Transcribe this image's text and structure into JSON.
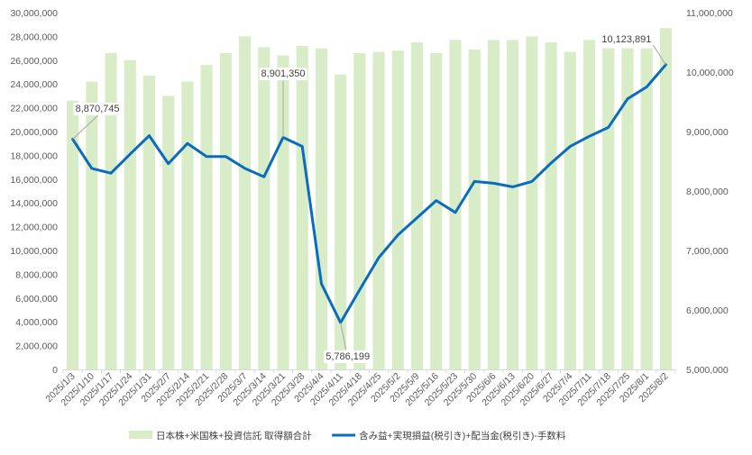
{
  "chart_data": {
    "type": "bar+line",
    "title": "",
    "categories": [
      "2025/1/3",
      "2025/1/10",
      "2025/1/17",
      "2025/1/24",
      "2025/1/31",
      "2025/2/7",
      "2025/2/14",
      "2025/2/21",
      "2025/2/28",
      "2025/3/7",
      "2025/3/14",
      "2025/3/21",
      "2025/3/28",
      "2025/4/4",
      "2025/4/11",
      "2025/4/18",
      "2025/4/25",
      "2025/5/2",
      "2025/5/9",
      "2025/5/16",
      "2025/5/23",
      "2025/5/30",
      "2025/6/6",
      "2025/6/13",
      "2025/6/20",
      "2025/6/27",
      "2025/7/4",
      "2025/7/11",
      "2025/7/18",
      "2025/7/25",
      "2025/8/1",
      "2025/8/2"
    ],
    "bar_series": {
      "name": "日本株+米国株+投資信託 取得額合計",
      "axis": "left",
      "color": "#d9ecc8",
      "values": [
        22600000,
        24200000,
        26600000,
        26000000,
        24700000,
        23000000,
        24200000,
        25600000,
        26600000,
        28000000,
        27100000,
        26400000,
        27200000,
        27000000,
        24800000,
        26600000,
        26700000,
        26800000,
        27500000,
        26600000,
        27700000,
        26900000,
        27700000,
        27700000,
        28000000,
        27500000,
        26700000,
        27700000,
        27000000,
        27000000,
        27000000,
        28700000
      ]
    },
    "line_series": {
      "name": "含み益+実現損益(税引き)+配当金(税引き)-手数料",
      "axis": "right",
      "color": "#0a6bbf",
      "values": [
        8870745,
        8380000,
        8300000,
        8620000,
        8930000,
        8460000,
        8800000,
        8580000,
        8580000,
        8380000,
        8240000,
        8901350,
        8750000,
        6440000,
        5786199,
        6340000,
        6880000,
        7260000,
        7550000,
        7840000,
        7640000,
        8160000,
        8130000,
        8070000,
        8160000,
        8470000,
        8750000,
        8920000,
        9070000,
        9550000,
        9750000,
        10123891
      ]
    },
    "y_left": {
      "min": 0,
      "max": 30000000,
      "step": 2000000,
      "tick_labels": [
        "0",
        "2,000,000",
        "4,000,000",
        "6,000,000",
        "8,000,000",
        "10,000,000",
        "12,000,000",
        "14,000,000",
        "16,000,000",
        "18,000,000",
        "20,000,000",
        "22,000,000",
        "24,000,000",
        "26,000,000",
        "28,000,000",
        "30,000,000"
      ]
    },
    "y_right": {
      "min": 5000000,
      "max": 11000000,
      "step": 1000000,
      "tick_labels": [
        "5,000,000",
        "6,000,000",
        "7,000,000",
        "8,000,000",
        "9,000,000",
        "10,000,000",
        "11,000,000"
      ]
    },
    "grid": false,
    "legend_position": "bottom",
    "annotations": [
      {
        "index": 0,
        "text": "8,870,745",
        "placement": "above-right"
      },
      {
        "index": 11,
        "text": "8,901,350",
        "placement": "above"
      },
      {
        "index": 14,
        "text": "5,786,199",
        "placement": "below"
      },
      {
        "index": 31,
        "text": "10,123,891",
        "placement": "above-left"
      }
    ],
    "legend": [
      {
        "label": "日本株+米国株+投資信託 取得額合計",
        "kind": "bar",
        "color": "#d9ecc8"
      },
      {
        "label": "含み益+実現損益(税引き)+配当金(税引き)-手数料",
        "kind": "line",
        "color": "#0a6bbf"
      }
    ]
  }
}
